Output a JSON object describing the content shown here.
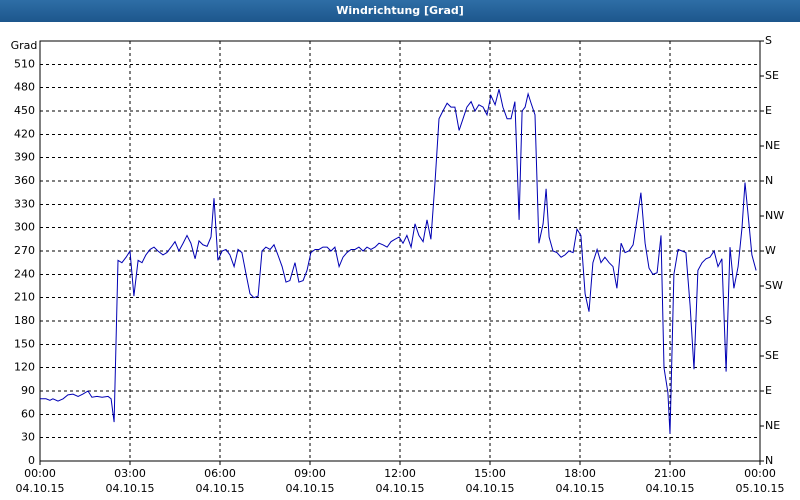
{
  "chart_data": {
    "type": "line",
    "title": "Windrichtung [Grad]",
    "y_label": "Grad",
    "x": [
      0,
      0.2,
      0.33,
      0.43,
      0.6,
      0.77,
      0.93,
      1.1,
      1.27,
      1.43,
      1.6,
      1.73,
      1.9,
      2.07,
      2.27,
      2.37,
      2.47,
      2.6,
      2.73,
      2.87,
      3,
      3.13,
      3.27,
      3.4,
      3.53,
      3.67,
      3.8,
      3.93,
      4.1,
      4.23,
      4.37,
      4.5,
      4.63,
      4.77,
      4.9,
      5.03,
      5.17,
      5.3,
      5.43,
      5.57,
      5.7,
      5.8,
      5.93,
      6.07,
      6.2,
      6.33,
      6.47,
      6.6,
      6.73,
      6.87,
      7,
      7.13,
      7.27,
      7.4,
      7.53,
      7.67,
      7.8,
      7.93,
      8.07,
      8.2,
      8.33,
      8.5,
      8.63,
      8.77,
      8.9,
      9.03,
      9.17,
      9.3,
      9.43,
      9.57,
      9.7,
      9.83,
      9.97,
      10.1,
      10.23,
      10.37,
      10.5,
      10.63,
      10.77,
      10.9,
      11.03,
      11.17,
      11.3,
      11.43,
      11.57,
      11.7,
      11.83,
      11.97,
      12.1,
      12.23,
      12.37,
      12.5,
      12.63,
      12.77,
      12.9,
      13.03,
      13.17,
      13.3,
      13.43,
      13.57,
      13.7,
      13.83,
      13.97,
      14.1,
      14.23,
      14.37,
      14.5,
      14.63,
      14.77,
      14.9,
      15.03,
      15.17,
      15.3,
      15.43,
      15.57,
      15.7,
      15.83,
      15.97,
      16.07,
      16.17,
      16.27,
      16.37,
      16.5,
      16.63,
      16.77,
      16.87,
      16.97,
      17.1,
      17.23,
      17.37,
      17.5,
      17.63,
      17.77,
      17.9,
      18.03,
      18.17,
      18.3,
      18.43,
      18.57,
      18.7,
      18.83,
      18.97,
      19.1,
      19.23,
      19.37,
      19.5,
      19.63,
      19.77,
      19.9,
      20.03,
      20.17,
      20.3,
      20.43,
      20.57,
      20.7,
      20.8,
      20.93,
      21,
      21.13,
      21.27,
      21.4,
      21.53,
      21.67,
      21.8,
      21.93,
      22.07,
      22.2,
      22.33,
      22.47,
      22.6,
      22.73,
      22.87,
      23,
      23.13,
      23.27,
      23.4,
      23.5,
      23.6,
      23.73,
      23.87
    ],
    "values": [
      80,
      80,
      78,
      80,
      77,
      80,
      85,
      86,
      83,
      86,
      90,
      82,
      83,
      82,
      83,
      80,
      50,
      258,
      255,
      262,
      270,
      212,
      258,
      255,
      265,
      272,
      275,
      270,
      265,
      268,
      275,
      282,
      270,
      280,
      290,
      280,
      260,
      283,
      278,
      276,
      288,
      338,
      258,
      270,
      272,
      265,
      250,
      272,
      268,
      240,
      215,
      210,
      212,
      270,
      275,
      272,
      278,
      265,
      250,
      230,
      232,
      255,
      230,
      232,
      245,
      268,
      272,
      272,
      275,
      275,
      270,
      275,
      250,
      262,
      268,
      272,
      272,
      275,
      270,
      275,
      272,
      275,
      280,
      278,
      275,
      282,
      285,
      288,
      280,
      290,
      275,
      305,
      290,
      282,
      310,
      285,
      360,
      440,
      450,
      460,
      455,
      455,
      425,
      440,
      455,
      462,
      450,
      458,
      455,
      445,
      470,
      458,
      478,
      455,
      440,
      440,
      462,
      310,
      450,
      455,
      472,
      460,
      445,
      280,
      305,
      350,
      288,
      270,
      268,
      262,
      265,
      270,
      268,
      298,
      290,
      215,
      192,
      255,
      272,
      255,
      262,
      255,
      250,
      222,
      280,
      268,
      270,
      278,
      310,
      345,
      280,
      248,
      240,
      242,
      290,
      120,
      88,
      35,
      240,
      272,
      270,
      268,
      200,
      118,
      245,
      255,
      260,
      262,
      270,
      250,
      260,
      115,
      275,
      222,
      250,
      300,
      358,
      318,
      265,
      245
    ],
    "color": "#0000b4",
    "xlim": [
      0,
      24
    ],
    "xticks": [
      {
        "value": 0,
        "label": "00:00\n04.10.15"
      },
      {
        "value": 3,
        "label": "03:00\n04.10.15"
      },
      {
        "value": 6,
        "label": "06:00\n04.10.15"
      },
      {
        "value": 9,
        "label": "09:00\n04.10.15"
      },
      {
        "value": 12,
        "label": "12:00\n04.10.15"
      },
      {
        "value": 15,
        "label": "15:00\n04.10.15"
      },
      {
        "value": 18,
        "label": "18:00\n04.10.15"
      },
      {
        "value": 21,
        "label": "21:00\n04.10.15"
      },
      {
        "value": 24,
        "label": "00:00\n05.10.15"
      }
    ],
    "ylim": [
      0,
      540
    ],
    "yticks": [
      0,
      30,
      60,
      90,
      120,
      150,
      180,
      210,
      240,
      270,
      300,
      330,
      360,
      390,
      420,
      450,
      480,
      510
    ],
    "y2lim": [
      0,
      540
    ],
    "y2ticks": [
      {
        "value": 0,
        "label": "N"
      },
      {
        "value": 45,
        "label": "NE"
      },
      {
        "value": 90,
        "label": "E"
      },
      {
        "value": 135,
        "label": "SE"
      },
      {
        "value": 180,
        "label": "S"
      },
      {
        "value": 225,
        "label": "SW"
      },
      {
        "value": 270,
        "label": "W"
      },
      {
        "value": 315,
        "label": "NW"
      },
      {
        "value": 360,
        "label": "N"
      },
      {
        "value": 405,
        "label": "NE"
      },
      {
        "value": 450,
        "label": "E"
      },
      {
        "value": 495,
        "label": "SE"
      },
      {
        "value": 540,
        "label": "S"
      }
    ],
    "grid": true
  }
}
